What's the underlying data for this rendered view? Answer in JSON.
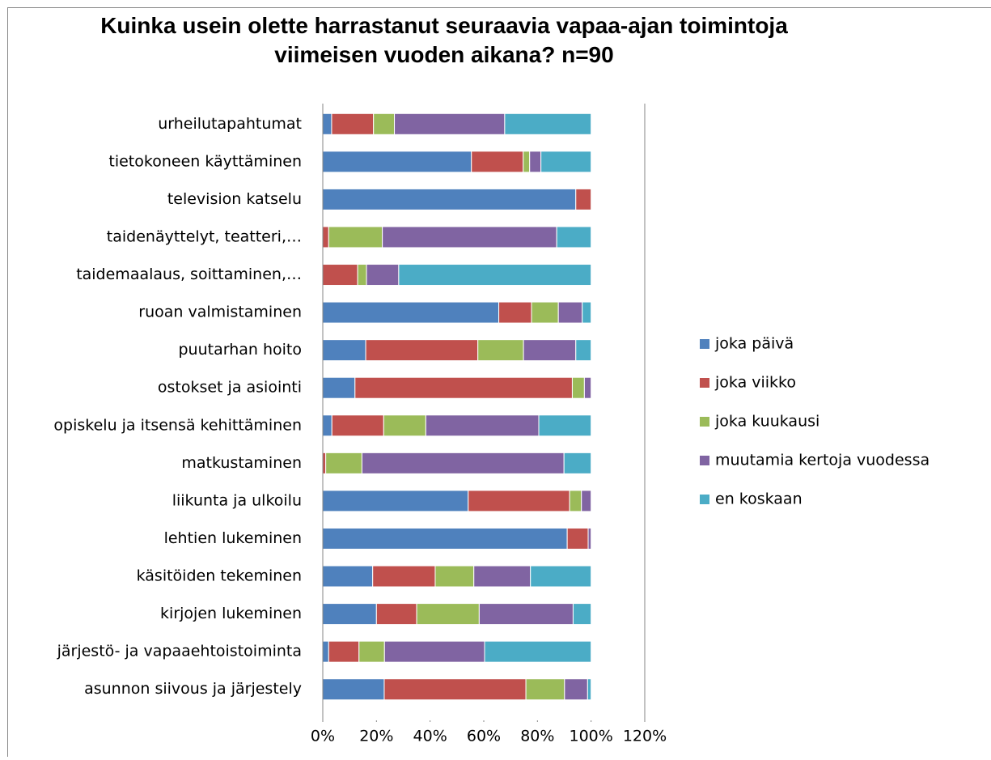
{
  "chart_data": {
    "type": "stacked_barh",
    "title": "Kuinka usein olette harrastanut seuraavia vapaa-ajan toimintoja viimeisen vuoden aikana? n=90",
    "categories": [
      "urheilutapahtumat",
      "tietokoneen käyttäminen",
      "television katselu",
      "taidenäyttelyt, teatteri,…",
      "taidemaalaus, soittaminen,…",
      "ruoan valmistaminen",
      "puutarhan hoito",
      "ostokset ja asiointi",
      "opiskelu ja itsensä kehittäminen",
      "matkustaminen",
      "liikunta ja ulkoilu",
      "lehtien lukeminen",
      "käsitöiden tekeminen",
      "kirjojen lukeminen",
      "järjestö- ja vapaaehtoistoiminta",
      "asunnon siivous ja järjestely"
    ],
    "series": [
      {
        "name": "joka päivä",
        "color": "#4f81bd",
        "values": [
          3.3,
          55.4,
          94.3,
          0,
          0,
          65.6,
          16,
          12,
          3.4,
          0,
          54.2,
          91.1,
          18.6,
          20,
          2.2,
          22.9
        ]
      },
      {
        "name": "joka viikko",
        "color": "#c0504d",
        "values": [
          15.6,
          19.3,
          5.7,
          2.2,
          13,
          12.2,
          41.8,
          81,
          19.3,
          1.1,
          37.8,
          7.8,
          23.3,
          15,
          11.3,
          52.8
        ]
      },
      {
        "name": "joka kuukausi",
        "color": "#9bbb59",
        "values": [
          7.8,
          2.4,
          0,
          20,
          3.3,
          10,
          17,
          4.5,
          15.7,
          13.5,
          4.4,
          0,
          14.4,
          23.3,
          9.5,
          14.4
        ]
      },
      {
        "name": "muutamia kertoja vuodessa",
        "color": "#8064a2",
        "values": [
          41.1,
          4.2,
          0,
          65,
          12,
          8.9,
          19.5,
          2.5,
          42.1,
          75.3,
          3.6,
          1.1,
          21.1,
          35,
          37.3,
          8.6
        ]
      },
      {
        "name": "en koskaan",
        "color": "#4bacc6",
        "values": [
          32.2,
          18.7,
          0,
          12.8,
          71.7,
          3.3,
          5.7,
          0,
          19.5,
          10.1,
          0,
          0,
          22.6,
          6.7,
          39.7,
          1.3
        ]
      }
    ],
    "xlim": [
      0,
      120
    ],
    "xticks": [
      {
        "value": 0,
        "label": "0%"
      },
      {
        "value": 20,
        "label": "20%"
      },
      {
        "value": 40,
        "label": "40%"
      },
      {
        "value": 60,
        "label": "60%"
      },
      {
        "value": 80,
        "label": "80%"
      },
      {
        "value": 100,
        "label": "100%"
      },
      {
        "value": 120,
        "label": "120%"
      }
    ],
    "legend": "right"
  }
}
